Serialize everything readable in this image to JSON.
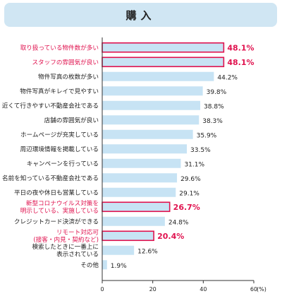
{
  "header": {
    "title": "購入"
  },
  "colors": {
    "bar": "#c7e3f4",
    "highlight": "#e0134f",
    "text": "#222222",
    "header_bg": "#d0e6f3"
  },
  "chart_data": {
    "type": "bar",
    "orientation": "horizontal",
    "unit": "(%)",
    "xlim": [
      0,
      60
    ],
    "xticks": [
      "0",
      "20",
      "40",
      "60"
    ],
    "grid": false,
    "categories": [
      {
        "lines": [
          "取り扱っている物件数が多い"
        ],
        "value": 48.1,
        "label": "48.1%",
        "highlight": true
      },
      {
        "lines": [
          "スタッフの雰囲気が良い"
        ],
        "value": 48.1,
        "label": "48.1%",
        "highlight": true
      },
      {
        "lines": [
          "物件写真の枚数が多い"
        ],
        "value": 44.2,
        "label": "44.2%",
        "highlight": false
      },
      {
        "lines": [
          "物件写真がキレイで見やすい"
        ],
        "value": 39.8,
        "label": "39.8%",
        "highlight": false
      },
      {
        "lines": [
          "近くて行きやすい不動産会社である"
        ],
        "value": 38.8,
        "label": "38.8%",
        "highlight": false
      },
      {
        "lines": [
          "店舗の雰囲気が良い"
        ],
        "value": 38.3,
        "label": "38.3%",
        "highlight": false
      },
      {
        "lines": [
          "ホームページが充実している"
        ],
        "value": 35.9,
        "label": "35.9%",
        "highlight": false
      },
      {
        "lines": [
          "周辺環境情報を掲載している"
        ],
        "value": 33.5,
        "label": "33.5%",
        "highlight": false
      },
      {
        "lines": [
          "キャンペーンを行っている"
        ],
        "value": 31.1,
        "label": "31.1%",
        "highlight": false
      },
      {
        "lines": [
          "名前を知っている不動産会社である"
        ],
        "value": 29.6,
        "label": "29.6%",
        "highlight": false
      },
      {
        "lines": [
          "平日の夜や休日も営業している"
        ],
        "value": 29.1,
        "label": "29.1%",
        "highlight": false
      },
      {
        "lines": [
          "新型コロナウイルス対策を",
          "明示している、実施している"
        ],
        "value": 26.7,
        "label": "26.7%",
        "highlight": true
      },
      {
        "lines": [
          "クレジットカード決済ができる"
        ],
        "value": 24.8,
        "label": "24.8%",
        "highlight": false
      },
      {
        "lines": [
          "リモート対応可",
          "(接客・内見・契約など)"
        ],
        "value": 20.4,
        "label": "20.4%",
        "highlight": true
      },
      {
        "lines": [
          "検索したときに一番上に",
          "表示されている"
        ],
        "value": 12.6,
        "label": "12.6%",
        "highlight": false
      },
      {
        "lines": [
          "その他"
        ],
        "value": 1.9,
        "label": "1.9%",
        "highlight": false
      }
    ]
  }
}
